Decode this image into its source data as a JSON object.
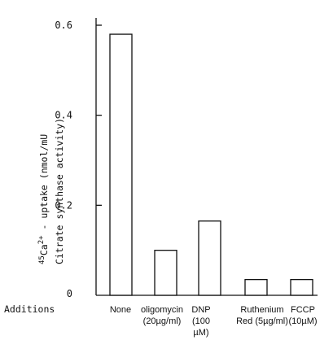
{
  "chart_data": {
    "type": "bar",
    "categories": [
      [
        "None"
      ],
      [
        "oligomycin",
        "(20µg/ml)"
      ],
      [
        "DNP",
        "(100",
        "µM)"
      ],
      [
        "Ruthenium",
        "Red (5µg/ml)"
      ],
      [
        "FCCP",
        "(10µM)"
      ]
    ],
    "values": [
      0.58,
      0.1,
      0.165,
      0.035,
      0.035
    ],
    "ylim": [
      0,
      0.6
    ],
    "yticks": [
      {
        "value": 0,
        "label": "0"
      },
      {
        "value": 0.2,
        "label": "0.2"
      },
      {
        "value": 0.4,
        "label": "0.4"
      },
      {
        "value": 0.6,
        "label": "0.6"
      }
    ],
    "ylabel_line1": "45Ca2+ - uptake (nmol/mU",
    "ylabel_line2": "Citrate synthase activity)",
    "xlabel": "Additions"
  }
}
